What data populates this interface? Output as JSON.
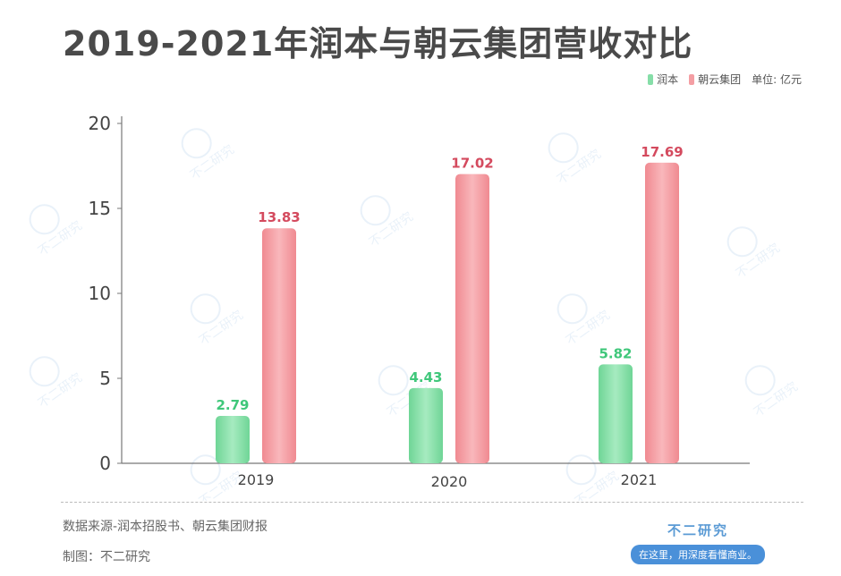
{
  "title": "2019-2021年润本与朝云集团营收对比",
  "legend": {
    "series_a": "润本",
    "series_b": "朝云集团",
    "unit": "单位: 亿元"
  },
  "footer": {
    "source": "数据来源-润本招股书、朝云集团财报",
    "maker": "制图：不二研究"
  },
  "brand": {
    "name": "不二研究",
    "tagline": "在这里，用深度看懂商业。",
    "watermark": "不二研究"
  },
  "colors": {
    "green": "#86dea8",
    "red": "#f49ea3",
    "green_label": "#3fc77a",
    "red_label": "#d44a5e"
  },
  "chart_data": {
    "type": "bar",
    "title": "2019-2021年润本与朝云集团营收对比",
    "categories": [
      "2019",
      "2020",
      "2021"
    ],
    "series": [
      {
        "name": "润本",
        "values": [
          2.79,
          4.43,
          5.82
        ]
      },
      {
        "name": "朝云集团",
        "values": [
          13.83,
          17.02,
          17.69
        ]
      }
    ],
    "ylim": [
      0,
      20
    ],
    "yticks": [
      0,
      5,
      10,
      15,
      20
    ],
    "grid": false,
    "legend_position": "top-right",
    "value_labels": true,
    "unit": "单位: 亿元"
  }
}
